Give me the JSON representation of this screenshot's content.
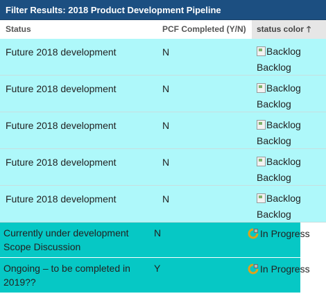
{
  "window": {
    "title": "Filter Results: 2018 Product Development Pipeline"
  },
  "columns": {
    "status": "Status",
    "pcf": "PCF Completed (Y/N)",
    "status_color": "status color",
    "sort_icon": "arrow-up-icon"
  },
  "rows": [
    {
      "status": "Future 2018 development",
      "pcf": "N",
      "color_alt": "Backlog",
      "color_label": "Backlog"
    },
    {
      "status": "Future 2018 development",
      "pcf": "N",
      "color_alt": "Backlog",
      "color_label": "Backlog"
    },
    {
      "status": "Future 2018 development",
      "pcf": "N",
      "color_alt": "Backlog",
      "color_label": "Backlog"
    },
    {
      "status": "Future 2018 development",
      "pcf": "N",
      "color_alt": "Backlog",
      "color_label": "Backlog"
    },
    {
      "status": "Future 2018 development",
      "pcf": "N",
      "color_alt": "Backlog",
      "color_label": "Backlog"
    },
    {
      "status": "Currently under development Scope Discussion",
      "pcf": "N",
      "color_label": "In Progress",
      "icon": "in-progress-icon"
    },
    {
      "status": "Ongoing – to be completed in 2019??",
      "pcf": "Y",
      "color_label": "In Progress",
      "icon": "in-progress-icon"
    }
  ],
  "colors": {
    "title_bar": "#1c4f81",
    "backlog_row": "#aef8fa",
    "in_progress_row": "#06c8c5",
    "sorted_header": "#e6e6e6"
  }
}
